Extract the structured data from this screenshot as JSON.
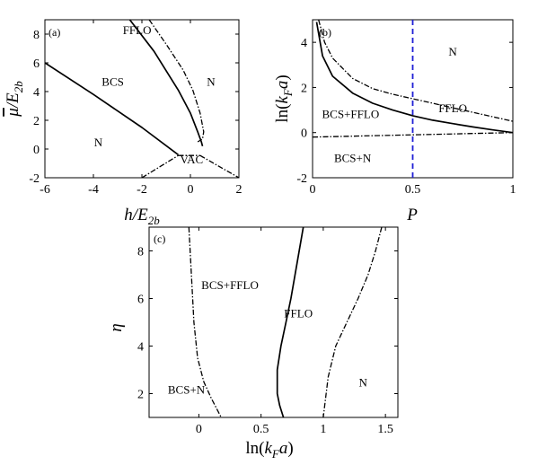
{
  "chart_data": [
    {
      "type": "line",
      "panel_label": "(a)",
      "xlabel": "h/E2b",
      "ylabel": "μ̄/E2b",
      "xlim": [
        -6,
        2
      ],
      "ylim": [
        -2,
        9
      ],
      "xticks": [
        "-6",
        "-4",
        "-2",
        "0",
        "2"
      ],
      "yticks": [
        "-2",
        "0",
        "2",
        "4",
        "6",
        "8"
      ],
      "region_labels": [
        {
          "text": "FFLO",
          "x": -2.2,
          "y": 8.0
        },
        {
          "text": "BCS",
          "x": -3.2,
          "y": 4.4
        },
        {
          "text": "N",
          "x": 0.85,
          "y": 4.4
        },
        {
          "text": "N",
          "x": -3.8,
          "y": 0.2
        },
        {
          "text": "VAC",
          "x": 0.05,
          "y": -1.0
        }
      ],
      "series": [
        {
          "style": "solid",
          "x": [
            -6,
            -4,
            -2,
            -0.5
          ],
          "y": [
            6.0,
            3.8,
            1.5,
            -0.4
          ]
        },
        {
          "style": "solid",
          "x": [
            -2.5,
            -1.5,
            -0.5,
            0,
            0.3,
            0.45,
            0.5
          ],
          "y": [
            9.0,
            6.8,
            4.1,
            2.5,
            1.2,
            0.5,
            0.2
          ]
        },
        {
          "style": "dashdot",
          "x": [
            -1.7,
            -1.0,
            -0.3,
            0.1,
            0.4,
            0.55,
            0.5,
            0.3
          ],
          "y": [
            9.0,
            7.3,
            5.5,
            4.1,
            2.5,
            1.2,
            0.7,
            0.5
          ]
        },
        {
          "style": "dashdot",
          "x": [
            -0.5,
            0.4
          ],
          "y": [
            -0.45,
            -0.45
          ]
        },
        {
          "style": "dashdot",
          "x": [
            -2.0,
            -0.5
          ],
          "y": [
            -2.0,
            -0.45
          ]
        },
        {
          "style": "dashdot",
          "x": [
            0.4,
            2.0
          ],
          "y": [
            -0.45,
            -2.0
          ]
        }
      ]
    },
    {
      "type": "line",
      "panel_label": "(b)",
      "xlabel": "P",
      "ylabel": "ln(kFa)",
      "xlim": [
        0,
        1
      ],
      "ylim": [
        -2,
        5
      ],
      "xticks": [
        "0",
        "0.5",
        "1"
      ],
      "yticks": [
        "-2",
        "0",
        "2",
        "4"
      ],
      "vertical_line": {
        "x": 0.5,
        "color": "#1f1fd6",
        "style": "dashed"
      },
      "region_labels": [
        {
          "text": "N",
          "x": 0.7,
          "y": 3.4
        },
        {
          "text": "BCS+FFLO",
          "x": 0.19,
          "y": 0.65
        },
        {
          "text": "FFLO",
          "x": 0.7,
          "y": 0.9
        },
        {
          "text": "BCS+N",
          "x": 0.2,
          "y": -1.3
        }
      ],
      "series": [
        {
          "style": "solid",
          "x": [
            0.02,
            0.05,
            0.1,
            0.2,
            0.3,
            0.4,
            0.5,
            0.6,
            0.7,
            0.8,
            0.9,
            1.0
          ],
          "y": [
            4.9,
            3.4,
            2.5,
            1.75,
            1.3,
            1.0,
            0.75,
            0.55,
            0.4,
            0.25,
            0.12,
            0.0
          ]
        },
        {
          "style": "dashdot",
          "x": [
            0.03,
            0.06,
            0.1,
            0.2,
            0.3,
            0.4,
            0.5,
            0.6,
            0.7,
            0.8,
            0.9,
            1.0
          ],
          "y": [
            5.0,
            4.0,
            3.3,
            2.4,
            1.95,
            1.7,
            1.5,
            1.3,
            1.1,
            0.9,
            0.7,
            0.5
          ]
        },
        {
          "style": "dashdot",
          "x": [
            0,
            0.5,
            1.0
          ],
          "y": [
            -0.2,
            -0.1,
            0.0
          ]
        }
      ]
    },
    {
      "type": "line",
      "panel_label": "(c)",
      "xlabel": "ln(kFa)",
      "ylabel": "η",
      "xlim": [
        -0.4,
        1.6
      ],
      "ylim": [
        1,
        9
      ],
      "xticks": [
        "0",
        "0.5",
        "1",
        "1.5"
      ],
      "yticks": [
        "2",
        "4",
        "6",
        "8"
      ],
      "region_labels": [
        {
          "text": "BCS+FFLO",
          "x": 0.25,
          "y": 6.4
        },
        {
          "text": "FFLO",
          "x": 0.8,
          "y": 5.2
        },
        {
          "text": "N",
          "x": 1.32,
          "y": 2.3
        },
        {
          "text": "BCS+N",
          "x": -0.1,
          "y": 2.0
        }
      ],
      "series": [
        {
          "style": "dashdot",
          "x": [
            -0.08,
            -0.06,
            -0.04,
            -0.01,
            0.04,
            0.1,
            0.14,
            0.18
          ],
          "y": [
            9.0,
            7.0,
            5.0,
            3.5,
            2.5,
            1.8,
            1.4,
            1.0
          ]
        },
        {
          "style": "solid",
          "x": [
            0.84,
            0.79,
            0.74,
            0.7,
            0.66,
            0.63,
            0.63,
            0.65,
            0.68
          ],
          "y": [
            9.0,
            7.5,
            6.0,
            5.0,
            4.0,
            3.0,
            2.0,
            1.5,
            1.0
          ]
        },
        {
          "style": "dashdot",
          "x": [
            1.47,
            1.42,
            1.36,
            1.28,
            1.19,
            1.1,
            1.04,
            1.0
          ],
          "y": [
            9.0,
            8.0,
            7.0,
            6.0,
            5.0,
            4.0,
            2.7,
            1.0
          ]
        }
      ]
    }
  ]
}
